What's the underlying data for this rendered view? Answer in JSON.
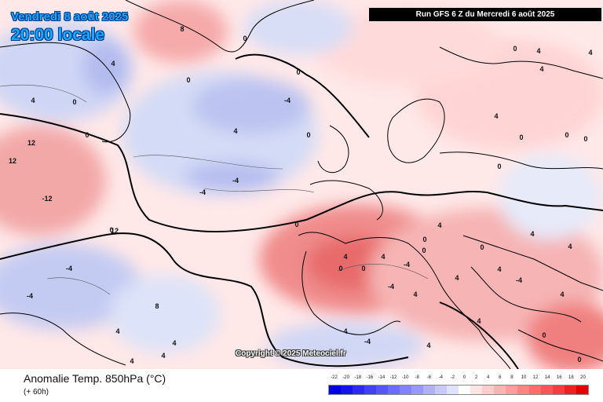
{
  "header": {
    "date": "Vendredi 8 août 2025",
    "time": "20:00 locale",
    "run": "Run GFS 6 Z du Mercredi 6 août 2025"
  },
  "map_labels": {
    "copyright": "Copyright © 2025 Meteociel.fr"
  },
  "footer": {
    "title": "Anomalie Temp. 850hPa (°C)",
    "subtitle": "(+ 60h)"
  },
  "legend": {
    "ticks": [
      "-22",
      "-20",
      "-18",
      "-16",
      "-14",
      "-12",
      "-10",
      "-8",
      "-6",
      "-4",
      "-2",
      "0",
      "2",
      "4",
      "6",
      "8",
      "10",
      "12",
      "14",
      "16",
      "18",
      "20"
    ],
    "colors": [
      "#0000e0",
      "#1414ea",
      "#2a2af2",
      "#4040f6",
      "#5656f8",
      "#6c6cfa",
      "#8282fb",
      "#9898fc",
      "#b0b0fd",
      "#c8c8fe",
      "#e0e0ff",
      "#ffffff",
      "#ffe4e4",
      "#ffcccc",
      "#ffb4b4",
      "#ff9c9c",
      "#ff8484",
      "#ff6c6c",
      "#ff5454",
      "#f83c3c",
      "#ee2020",
      "#e00000"
    ]
  },
  "contour_values": [
    "8",
    "4",
    "4",
    "0",
    "0",
    "0",
    "-4",
    "4",
    "0",
    "0",
    "0",
    "-4",
    "-4",
    "-4",
    "-4",
    "0",
    "4",
    "4",
    "0",
    "0",
    "0",
    "0",
    "12",
    "12",
    "-12",
    "12",
    "8",
    "4",
    "4",
    "4",
    "0",
    "0",
    "0",
    "0",
    "-4",
    "-4",
    "4",
    "4",
    "-4",
    "4",
    "0",
    "0",
    "4",
    "-4",
    "4",
    "4",
    "4",
    "4",
    "0",
    "0",
    "0",
    "4",
    "4",
    "4",
    "4",
    "4",
    "4",
    "4"
  ],
  "colors": {
    "title_text": "#1aa8ff",
    "title_outline": "#003a8c",
    "warm_anomaly": "#f4a0a0",
    "cold_anomaly": "#aab0ee",
    "coastline": "#000000"
  }
}
